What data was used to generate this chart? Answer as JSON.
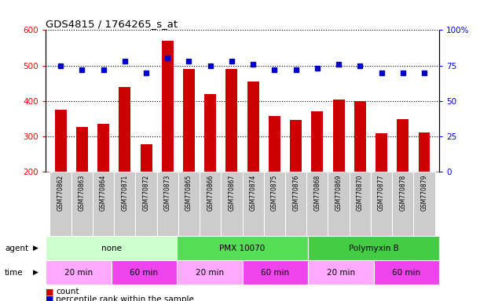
{
  "title": "GDS4815 / 1764265_s_at",
  "samples": [
    "GSM770862",
    "GSM770863",
    "GSM770864",
    "GSM770871",
    "GSM770872",
    "GSM770873",
    "GSM770865",
    "GSM770866",
    "GSM770867",
    "GSM770874",
    "GSM770875",
    "GSM770876",
    "GSM770868",
    "GSM770869",
    "GSM770870",
    "GSM770877",
    "GSM770878",
    "GSM770879"
  ],
  "counts": [
    375,
    325,
    335,
    440,
    278,
    570,
    490,
    420,
    490,
    455,
    358,
    345,
    370,
    403,
    400,
    308,
    348,
    310
  ],
  "percentile_ranks": [
    75,
    72,
    72,
    78,
    70,
    80,
    78,
    75,
    78,
    76,
    72,
    72,
    73,
    76,
    75,
    70,
    70,
    70
  ],
  "ylim_left": [
    200,
    600
  ],
  "ylim_right": [
    0,
    100
  ],
  "yticks_left": [
    200,
    300,
    400,
    500,
    600
  ],
  "yticks_right": [
    0,
    25,
    50,
    75,
    100
  ],
  "bar_color": "#CC0000",
  "dot_color": "#0000CC",
  "agent_groups": [
    {
      "label": "none",
      "start": 0,
      "end": 6,
      "color": "#CCFFCC"
    },
    {
      "label": "PMX 10070",
      "start": 6,
      "end": 12,
      "color": "#55DD55"
    },
    {
      "label": "Polymyxin B",
      "start": 12,
      "end": 18,
      "color": "#44CC44"
    }
  ],
  "time_groups": [
    {
      "label": "20 min",
      "start": 0,
      "end": 3,
      "color": "#FFAAFF"
    },
    {
      "label": "60 min",
      "start": 3,
      "end": 6,
      "color": "#EE44EE"
    },
    {
      "label": "20 min",
      "start": 6,
      "end": 9,
      "color": "#FFAAFF"
    },
    {
      "label": "60 min",
      "start": 9,
      "end": 12,
      "color": "#EE44EE"
    },
    {
      "label": "20 min",
      "start": 12,
      "end": 15,
      "color": "#FFAAFF"
    },
    {
      "label": "60 min",
      "start": 15,
      "end": 18,
      "color": "#EE44EE"
    }
  ],
  "legend_count_label": "count",
  "legend_pct_label": "percentile rank within the sample",
  "tick_bg_color": "#CCCCCC"
}
